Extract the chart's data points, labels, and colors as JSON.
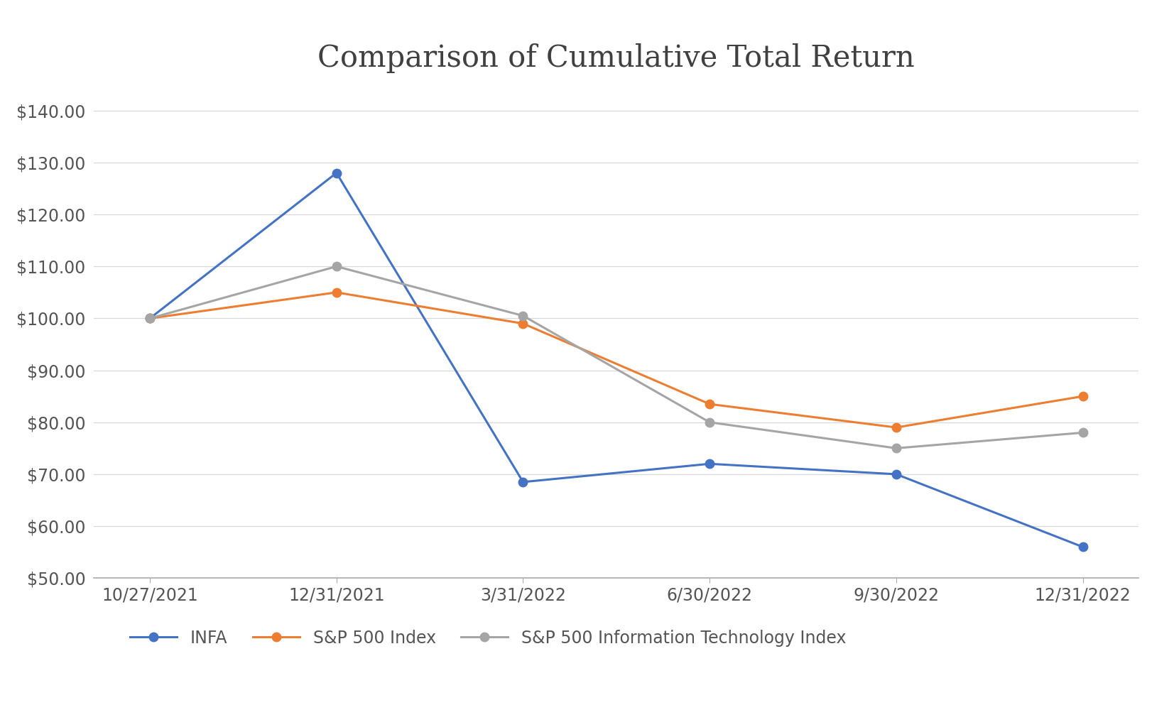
{
  "title": "Comparison of Cumulative Total Return",
  "x_labels": [
    "10/27/2021",
    "12/31/2021",
    "3/31/2022",
    "6/30/2022",
    "9/30/2022",
    "12/31/2022"
  ],
  "series": [
    {
      "name": "INFA",
      "values": [
        100.0,
        128.0,
        68.5,
        72.0,
        70.0,
        56.0
      ],
      "color": "#4472C4",
      "marker": "o",
      "linewidth": 2.2
    },
    {
      "name": "S&P 500 Index",
      "values": [
        100.0,
        105.0,
        99.0,
        83.5,
        79.0,
        85.0
      ],
      "color": "#ED7D31",
      "marker": "o",
      "linewidth": 2.2
    },
    {
      "name": "S&P 500 Information Technology Index",
      "values": [
        100.0,
        110.0,
        100.5,
        80.0,
        75.0,
        78.0
      ],
      "color": "#A5A5A5",
      "marker": "o",
      "linewidth": 2.2
    }
  ],
  "ylim": [
    50.0,
    145.0
  ],
  "yticks": [
    50.0,
    60.0,
    70.0,
    80.0,
    90.0,
    100.0,
    110.0,
    120.0,
    130.0,
    140.0
  ],
  "title_fontsize": 30,
  "tick_fontsize": 17,
  "legend_fontsize": 17,
  "background_color": "#FFFFFF",
  "grid_color": "#D8D8D8",
  "axis_line_color": "#AAAAAA",
  "marker_size": 9
}
